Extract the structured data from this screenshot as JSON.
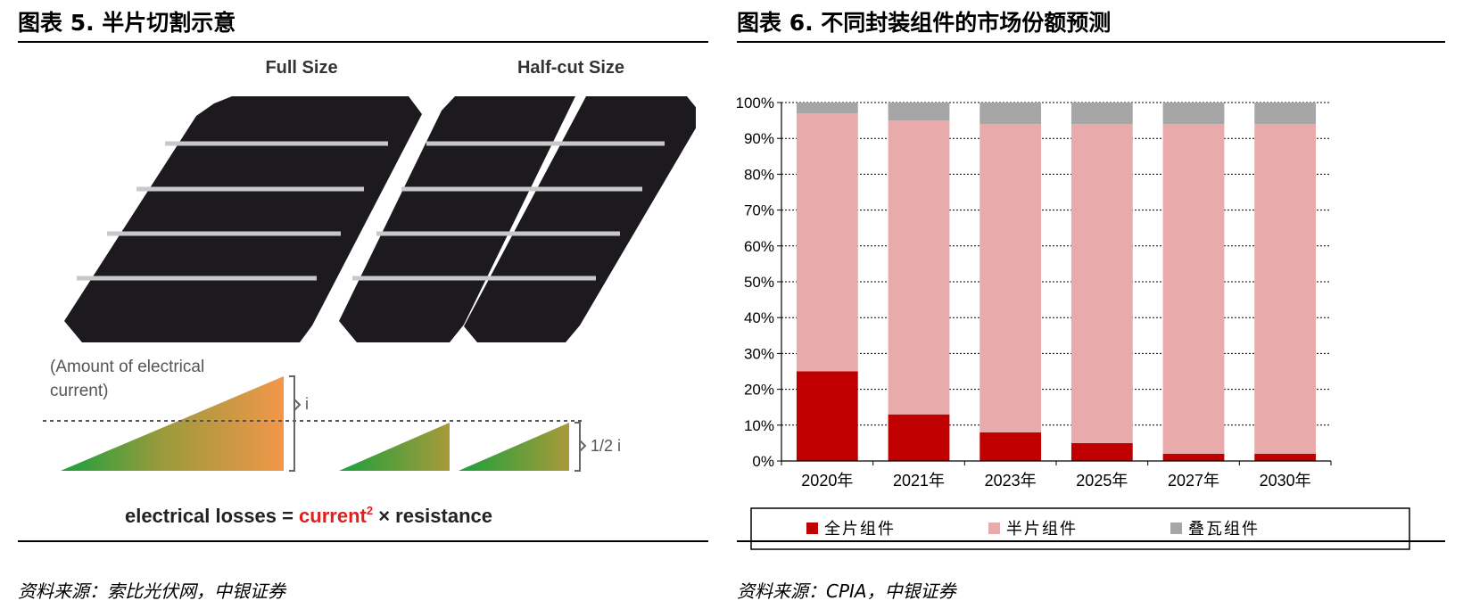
{
  "left_panel": {
    "title": "图表 5. 半片切割示意",
    "source": "资料来源：索比光伏网，中银证券",
    "labels": {
      "full_size": "Full Size",
      "half_cut_size": "Half-cut Size",
      "current_note_line1": "(Amount of electrical",
      "current_note_line2": "current)",
      "i_label": "i",
      "half_i_label": "1/2 i",
      "formula_prefix": "electrical losses = ",
      "formula_current": "current",
      "formula_exponent": "2",
      "formula_suffix": " × resistance"
    },
    "colors": {
      "cell": "#1c1a1e",
      "busbar": "#c8c8c8",
      "current_text": "#e0201f",
      "ramp_start": "#1aa03c",
      "ramp_end": "#f2974a"
    }
  },
  "right_panel": {
    "title": "图表 6. 不同封装组件的市场份额预测",
    "source": "资料来源：CPIA，中银证券"
  },
  "chart_data": {
    "type": "bar",
    "stacked": true,
    "categories": [
      "2020年",
      "2021年",
      "2023年",
      "2025年",
      "2027年",
      "2030年"
    ],
    "series": [
      {
        "name": "全片组件",
        "values": [
          25,
          13,
          8,
          5,
          2,
          2
        ],
        "color": "#c00000"
      },
      {
        "name": "半片组件",
        "values": [
          72,
          82,
          86,
          89,
          92,
          92
        ],
        "color": "#e8aaaa"
      },
      {
        "name": "叠瓦组件",
        "values": [
          3,
          5,
          6,
          6,
          6,
          6
        ],
        "color": "#a6a6a6"
      }
    ],
    "ylim": [
      0,
      100
    ],
    "yticks": [
      "0%",
      "10%",
      "20%",
      "30%",
      "40%",
      "50%",
      "60%",
      "70%",
      "80%",
      "90%",
      "100%"
    ],
    "grid": true,
    "legend_position": "bottom"
  }
}
